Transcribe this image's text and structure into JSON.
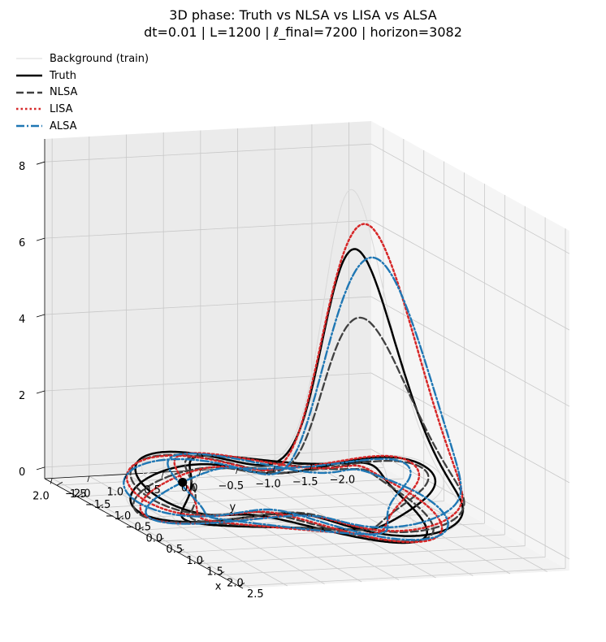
{
  "chart_data": {
    "type": "line3d",
    "title": "3D phase: Truth vs NLSA vs LISA vs ALSA",
    "subtitle": "dt=0.01 | L=1200 | ℓ_final=7200 | horizon=3082",
    "xlabel": "x",
    "ylabel": "y",
    "zlabel": "",
    "x_ticks": [
      "−2.0",
      "−1.5",
      "−1.0",
      "−0.5",
      "0.0",
      "0.5",
      "1.0",
      "1.5",
      "2.0",
      "2.5"
    ],
    "x_tick_values": [
      -2.0,
      -1.5,
      -1.0,
      -0.5,
      0.0,
      0.5,
      1.0,
      1.5,
      2.0,
      2.5
    ],
    "y_ticks": [
      "−2.0",
      "−1.5",
      "−1.0",
      "−0.5",
      "0.0",
      "0.5",
      "1.0",
      "1.5",
      "2.0"
    ],
    "y_tick_values": [
      -2.0,
      -1.5,
      -1.0,
      -0.5,
      0.0,
      0.5,
      1.0,
      1.5,
      2.0
    ],
    "z_ticks": [
      "0",
      "2",
      "4",
      "6",
      "8"
    ],
    "z_tick_values": [
      0,
      2,
      4,
      6,
      8
    ],
    "xlim": [
      -2.3,
      2.6
    ],
    "ylim": [
      -2.3,
      2.1
    ],
    "zlim": [
      -0.3,
      8.6
    ],
    "grid": true,
    "legend_position": "top-left",
    "series": [
      {
        "name": "Background (train)",
        "color": "#d9d9d9",
        "style": "solid",
        "peak": 7.6,
        "jitter": 0.06
      },
      {
        "name": "Truth",
        "color": "#000000",
        "style": "solid",
        "peak": 6.0,
        "jitter": 0.0
      },
      {
        "name": "NLSA",
        "color": "#404040",
        "style": "dashed",
        "peak": 4.2,
        "jitter": 0.1
      },
      {
        "name": "LISA",
        "color": "#d62728",
        "style": "dotted",
        "peak": 6.6,
        "jitter": 0.05
      },
      {
        "name": "ALSA",
        "color": "#1f77b4",
        "style": "dashdot",
        "peak": 5.7,
        "jitter": 0.14
      }
    ],
    "marker": {
      "x": -0.45,
      "y": 1.25,
      "z": 0.6
    }
  }
}
